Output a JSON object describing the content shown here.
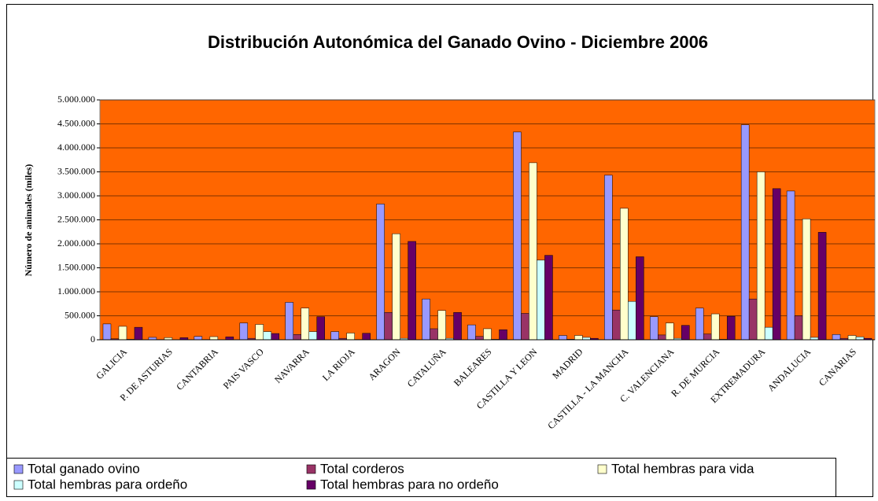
{
  "chart_data": {
    "type": "bar",
    "title": "Distribución  Autonómica del Ganado Ovino - Diciembre 2006",
    "y_label": "Número de animales (miles)",
    "categories": [
      "GALICIA",
      "P. DE ASTURIAS",
      "CANTABRIA",
      "PAIS VASCO",
      "NAVARRA",
      "LA RIOJA",
      "ARAGON",
      "CATALUÑA",
      "BALEARES",
      "CASTILLA Y LEON",
      "MADRID",
      "CASTILLA - LA MANCHA",
      "C. VALENCIANA",
      "R. DE MURCIA",
      "EXTREMADURA",
      "ANDALUCIA",
      "CANARIAS"
    ],
    "series": [
      {
        "name": "Total ganado ovino",
        "color": "#9999ff",
        "values": [
          330000,
          50000,
          70000,
          350000,
          780000,
          170000,
          2830000,
          850000,
          310000,
          4330000,
          90000,
          3430000,
          480000,
          660000,
          4480000,
          3100000,
          110000
        ]
      },
      {
        "name": "Total corderos",
        "color": "#993366",
        "values": [
          20000,
          5000,
          5000,
          30000,
          110000,
          30000,
          570000,
          230000,
          70000,
          550000,
          10000,
          620000,
          100000,
          120000,
          850000,
          500000,
          30000
        ]
      },
      {
        "name": "Total hembras para vida",
        "color": "#ffffcc",
        "values": [
          280000,
          45000,
          65000,
          320000,
          660000,
          140000,
          2210000,
          610000,
          230000,
          3690000,
          90000,
          2740000,
          350000,
          540000,
          3500000,
          2520000,
          90000
        ]
      },
      {
        "name": "Total hembras para ordeño",
        "color": "#ccffff",
        "values": [
          10000,
          2000,
          2000,
          170000,
          170000,
          5000,
          30000,
          30000,
          10000,
          1660000,
          50000,
          800000,
          30000,
          10000,
          260000,
          50000,
          60000
        ]
      },
      {
        "name": "Total hembras para no ordeño",
        "color": "#660066",
        "values": [
          260000,
          43000,
          60000,
          130000,
          480000,
          135000,
          2050000,
          570000,
          210000,
          1760000,
          30000,
          1730000,
          300000,
          490000,
          3150000,
          2240000,
          30000
        ]
      }
    ],
    "ylim": [
      0,
      5000000
    ],
    "yticks": [
      {
        "value": 0,
        "label": "0"
      },
      {
        "value": 500000,
        "label": "500.000"
      },
      {
        "value": 1000000,
        "label": "1.000.000"
      },
      {
        "value": 1500000,
        "label": "1.500.000"
      },
      {
        "value": 2000000,
        "label": "2.000.000"
      },
      {
        "value": 2500000,
        "label": "2.500.000"
      },
      {
        "value": 3000000,
        "label": "3.000.000"
      },
      {
        "value": 3500000,
        "label": "3.500.000"
      },
      {
        "value": 4000000,
        "label": "4.000.000"
      },
      {
        "value": 4500000,
        "label": "4.500.000"
      },
      {
        "value": 5000000,
        "label": "5.000.000"
      }
    ],
    "grid": true,
    "plot_background": "#ff6600",
    "legend_position": "bottom"
  }
}
